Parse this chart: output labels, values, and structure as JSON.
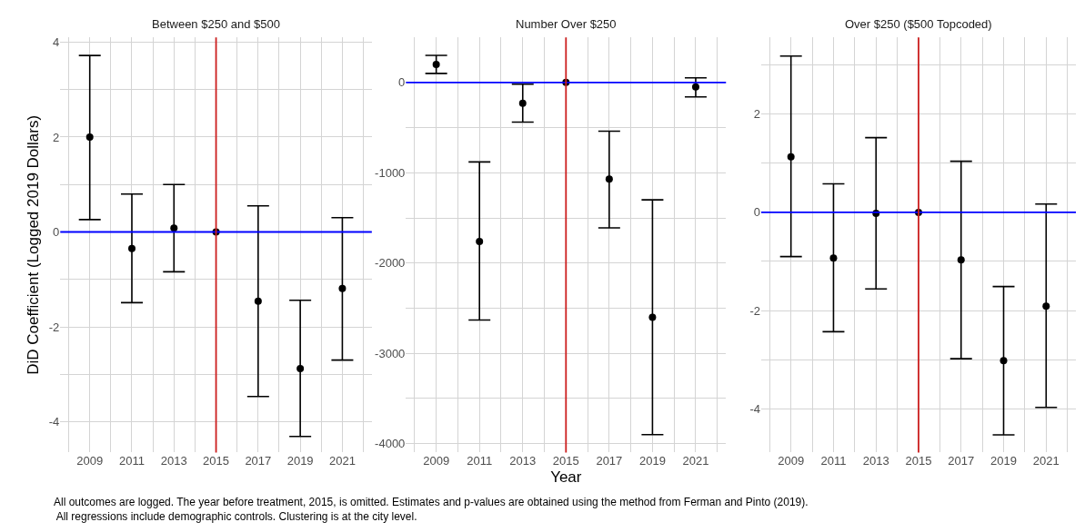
{
  "chart_data": [
    {
      "type": "scatter",
      "title": "Between $250 and $500",
      "ylabel": "DiD Coefficient (Logged 2019 Dollars)",
      "x": [
        2009,
        2011,
        2013,
        2015,
        2017,
        2019,
        2021
      ],
      "series": [
        {
          "color": "#000000",
          "values": [
            2.0,
            -0.35,
            0.08,
            0,
            -1.46,
            -2.88,
            -1.19
          ],
          "errors": [
            [
              0.26,
              3.72
            ],
            [
              -1.49,
              0.8
            ],
            [
              -0.84,
              1.0
            ],
            null,
            [
              -3.47,
              0.55
            ],
            [
              -4.31,
              -1.44
            ],
            [
              -2.7,
              0.3
            ]
          ]
        }
      ],
      "xlim": [
        2007.6,
        2022.4
      ],
      "xticks": [
        {
          "value": 2008,
          "label": null
        },
        2009,
        {
          "value": 2010,
          "label": null
        },
        2011,
        {
          "value": 2012,
          "label": null
        },
        2013,
        {
          "value": 2014,
          "label": null
        },
        2015,
        {
          "value": 2016,
          "label": null
        },
        2017,
        {
          "value": 2018,
          "label": null
        },
        2019,
        {
          "value": 2020,
          "label": null
        },
        2021,
        {
          "value": 2022,
          "label": null
        }
      ],
      "ylim": [
        -4.65,
        4.1
      ],
      "yticks": [
        -4,
        {
          "value": -3,
          "label": null
        },
        -2,
        {
          "value": -1,
          "label": null
        },
        0,
        {
          "value": 1,
          "label": null
        },
        2,
        {
          "value": 3,
          "label": null
        },
        4
      ],
      "ref_lines": [
        {
          "axis": "y",
          "value": 0,
          "color": "#0000ff"
        },
        {
          "axis": "x",
          "value": 2015,
          "color": "#cc1f1f"
        }
      ],
      "grid": true,
      "marker": "circle"
    },
    {
      "type": "scatter",
      "title": "Number Over $250",
      "xlabel": "Year",
      "x": [
        2009,
        2011,
        2013,
        2015,
        2017,
        2019,
        2021
      ],
      "series": [
        {
          "color": "#000000",
          "values": [
            200,
            -1760,
            -230,
            0,
            -1070,
            -2600,
            -50
          ],
          "errors": [
            [
              100,
              300
            ],
            [
              -2630,
              -880
            ],
            [
              -440,
              -20
            ],
            null,
            [
              -1610,
              -540
            ],
            [
              -3900,
              -1300
            ],
            [
              -160,
              50
            ]
          ]
        }
      ],
      "xlim": [
        2007.6,
        2022.4
      ],
      "xticks": [
        {
          "value": 2008,
          "label": null
        },
        2009,
        {
          "value": 2010,
          "label": null
        },
        2011,
        {
          "value": 2012,
          "label": null
        },
        2013,
        {
          "value": 2014,
          "label": null
        },
        2015,
        {
          "value": 2016,
          "label": null
        },
        2017,
        {
          "value": 2018,
          "label": null
        },
        2019,
        {
          "value": 2020,
          "label": null
        },
        2021,
        {
          "value": 2022,
          "label": null
        }
      ],
      "ylim": [
        -4098,
        498
      ],
      "yticks": [
        -4000,
        {
          "value": -3500,
          "label": null
        },
        -3000,
        {
          "value": -2500,
          "label": null
        },
        -2000,
        {
          "value": -1500,
          "label": null
        },
        -1000,
        {
          "value": -500,
          "label": null
        },
        0
      ],
      "ref_lines": [
        {
          "axis": "y",
          "value": 0,
          "color": "#0000ff"
        },
        {
          "axis": "x",
          "value": 2015,
          "color": "#cc1f1f"
        }
      ],
      "grid": true,
      "marker": "circle"
    },
    {
      "type": "scatter",
      "title": "Over $250 ($500 Topcoded)",
      "x": [
        2009,
        2011,
        2013,
        2015,
        2017,
        2019,
        2021
      ],
      "series": [
        {
          "color": "#000000",
          "values": [
            1.13,
            -0.93,
            -0.02,
            0,
            -0.97,
            -3.02,
            -1.91
          ],
          "errors": [
            [
              -0.9,
              3.18
            ],
            [
              -2.43,
              0.58
            ],
            [
              -1.56,
              1.52
            ],
            null,
            [
              -2.98,
              1.04
            ],
            [
              -4.53,
              -1.51
            ],
            [
              -3.97,
              0.17
            ]
          ]
        }
      ],
      "xlim": [
        2007.6,
        2022.4
      ],
      "xticks": [
        {
          "value": 2008,
          "label": null
        },
        2009,
        {
          "value": 2010,
          "label": null
        },
        2011,
        {
          "value": 2012,
          "label": null
        },
        2013,
        {
          "value": 2014,
          "label": null
        },
        2015,
        {
          "value": 2016,
          "label": null
        },
        2017,
        {
          "value": 2018,
          "label": null
        },
        2019,
        {
          "value": 2020,
          "label": null
        },
        2021,
        {
          "value": 2022,
          "label": null
        }
      ],
      "ylim": [
        -4.89,
        3.56
      ],
      "yticks": [
        -4,
        {
          "value": -3,
          "label": null
        },
        -2,
        {
          "value": -1,
          "label": null
        },
        0,
        {
          "value": 1,
          "label": null
        },
        2,
        {
          "value": 3,
          "label": null
        }
      ],
      "ref_lines": [
        {
          "axis": "y",
          "value": 0,
          "color": "#0000ff"
        },
        {
          "axis": "x",
          "value": 2015,
          "color": "#cc1f1f"
        }
      ],
      "grid": true,
      "marker": "circle",
      "annotations": [
        "All outcomes are logged. The year before treatment, 2015, is omitted. Estimates and p-values are obtained using the method from Ferman and Pinto (2019).\n All regressions include demographic controls. Clustering is at the city level."
      ]
    }
  ]
}
